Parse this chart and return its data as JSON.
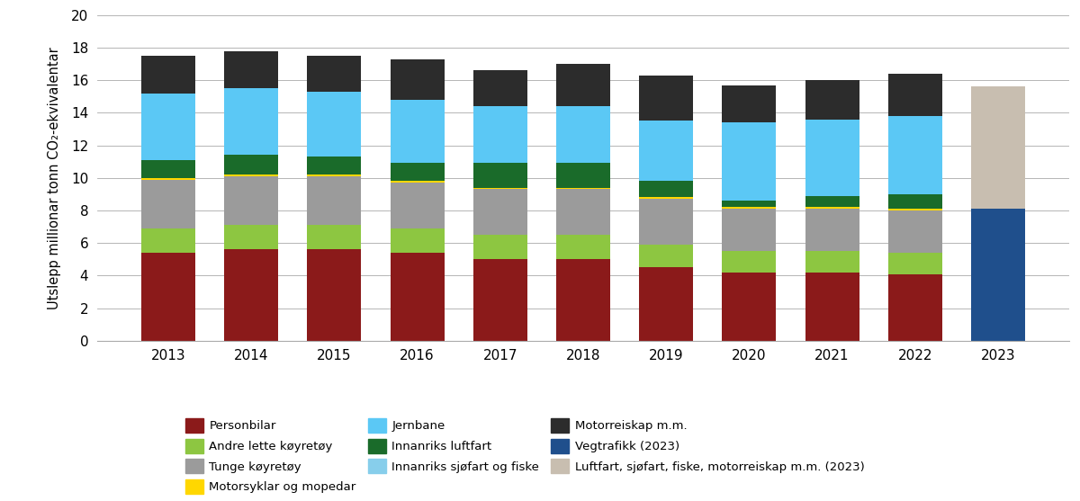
{
  "years": [
    2013,
    2014,
    2015,
    2016,
    2017,
    2018,
    2019,
    2020,
    2021,
    2022,
    2023
  ],
  "stack_order": [
    "Personbilar",
    "Andre_lette",
    "Tunge",
    "Motorsyklar",
    "Innanriks_luftfart",
    "Jernbane",
    "Motorreiskap",
    "Vegtrafikk_2023",
    "Luftfart_2023"
  ],
  "values": {
    "Personbilar": [
      5.4,
      5.6,
      5.6,
      5.4,
      5.0,
      5.0,
      4.5,
      4.2,
      4.2,
      4.1,
      0.0
    ],
    "Andre_lette": [
      1.5,
      1.5,
      1.5,
      1.5,
      1.5,
      1.5,
      1.4,
      1.3,
      1.3,
      1.3,
      0.0
    ],
    "Tunge": [
      3.0,
      3.0,
      3.0,
      2.8,
      2.8,
      2.8,
      2.8,
      2.6,
      2.6,
      2.6,
      0.0
    ],
    "Motorsyklar": [
      0.1,
      0.1,
      0.1,
      0.1,
      0.1,
      0.1,
      0.1,
      0.1,
      0.1,
      0.1,
      0.0
    ],
    "Innanriks_luftfart": [
      1.1,
      1.2,
      1.1,
      1.1,
      1.5,
      1.5,
      1.0,
      0.4,
      0.7,
      0.9,
      0.0
    ],
    "Jernbane": [
      4.1,
      4.1,
      4.0,
      3.9,
      3.5,
      3.5,
      3.7,
      4.8,
      4.7,
      4.8,
      0.0
    ],
    "Motorreiskap": [
      2.3,
      2.3,
      2.2,
      2.5,
      2.2,
      2.6,
      2.8,
      2.3,
      2.4,
      2.6,
      0.0
    ],
    "Vegtrafikk_2023": [
      0.0,
      0.0,
      0.0,
      0.0,
      0.0,
      0.0,
      0.0,
      0.0,
      0.0,
      0.0,
      8.1
    ],
    "Luftfart_2023": [
      0.0,
      0.0,
      0.0,
      0.0,
      0.0,
      0.0,
      0.0,
      0.0,
      0.0,
      0.0,
      7.5
    ]
  },
  "colors": {
    "Personbilar": "#8B1A1A",
    "Andre_lette": "#8DC641",
    "Tunge": "#9B9B9B",
    "Motorsyklar": "#FFD700",
    "Innanriks_luftfart": "#1A6B2A",
    "Jernbane": "#5BC8F5",
    "Motorreiskap": "#2C2C2C",
    "Vegtrafikk_2023": "#1F4F8C",
    "Luftfart_2023": "#C8BEB0"
  },
  "legend": [
    {
      "label": "Personbilar",
      "color": "#8B1A1A"
    },
    {
      "label": "Andre lette køyretøy",
      "color": "#8DC641"
    },
    {
      "label": "Tunge køyretøy",
      "color": "#9B9B9B"
    },
    {
      "label": "Motorsyklar og mopedar",
      "color": "#FFD700"
    },
    {
      "label": "Jernbane",
      "color": "#5BC8F5"
    },
    {
      "label": "Innanriks luftfart",
      "color": "#1A6B2A"
    },
    {
      "label": "Innanriks sjøfart og fiske",
      "color": "#87CEEB"
    },
    {
      "label": "Motorreiskap m.m.",
      "color": "#2C2C2C"
    },
    {
      "label": "Vegtrafikk (2023)",
      "color": "#1F4F8C"
    },
    {
      "label": "Luftfart, sjøfart, fiske, motorreiskap m.m. (2023)",
      "color": "#C8BEB0"
    }
  ],
  "ylabel": "Utslepp millionar tonn CO₂-ekvivalentar",
  "ylim": [
    0,
    20
  ],
  "yticks": [
    0,
    2,
    4,
    6,
    8,
    10,
    12,
    14,
    16,
    18,
    20
  ],
  "bar_width": 0.65
}
